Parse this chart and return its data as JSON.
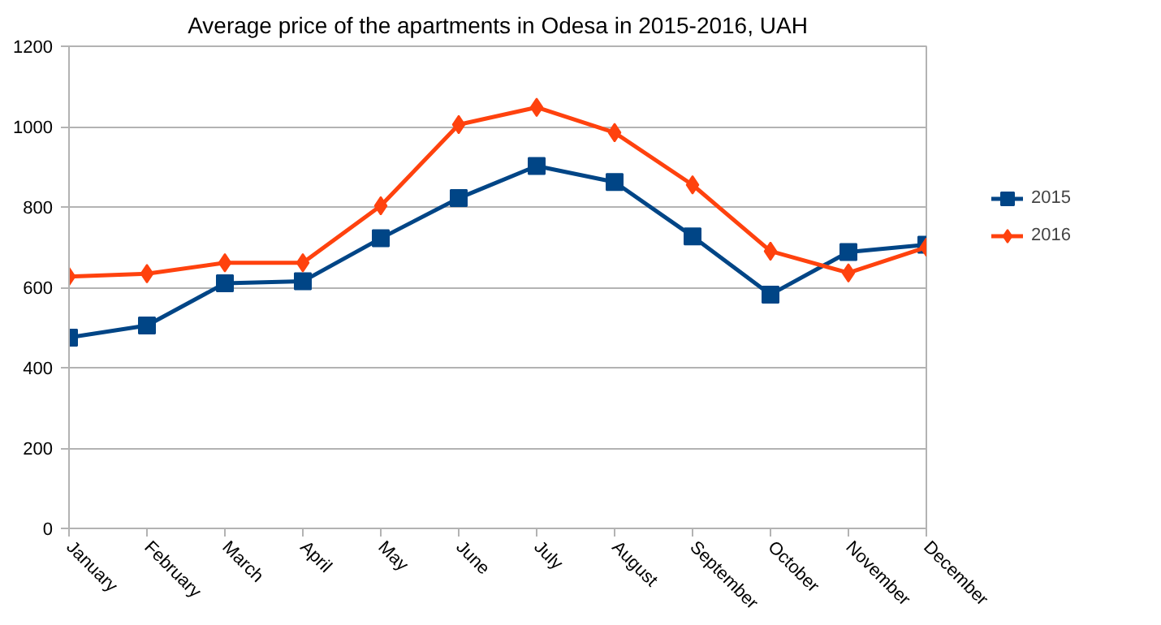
{
  "chart_data": {
    "type": "line",
    "title": "Average price of the apartments in Odesa in 2015-2016, UAH",
    "categories": [
      "January",
      "February",
      "March",
      "April",
      "May",
      "June",
      "July",
      "August",
      "September",
      "October",
      "November",
      "December"
    ],
    "series": [
      {
        "name": "2015",
        "color": "#004586",
        "marker": "square",
        "values": [
          475,
          505,
          610,
          615,
          722,
          822,
          902,
          862,
          727,
          582,
          688,
          706
        ]
      },
      {
        "name": "2016",
        "color": "#ff420e",
        "marker": "diamond",
        "values": [
          627,
          634,
          661,
          661,
          803,
          1005,
          1048,
          985,
          855,
          690,
          636,
          700
        ]
      }
    ],
    "ylim": [
      0,
      1200
    ],
    "yticks": [
      0,
      200,
      400,
      600,
      800,
      1000,
      1200
    ],
    "grid": "y",
    "legend": "right",
    "line_style": "solid"
  }
}
